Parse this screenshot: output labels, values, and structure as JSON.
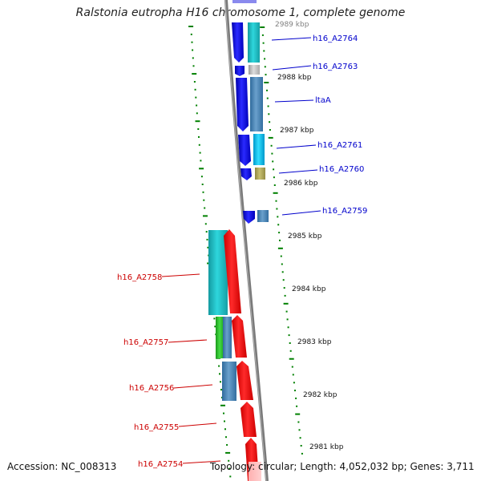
{
  "title": "Ralstonia eutropha H16 chromosome 1, complete genome",
  "footer": {
    "accession": "Accession: NC_008313",
    "topology": "Topology: circular; Length: 4,052,032 bp; Genes: 3,711"
  },
  "kbp_labels": [
    "2989 kbp",
    "2988 kbp",
    "2987 kbp",
    "2986 kbp",
    "2985 kbp",
    "2984 kbp",
    "2983 kbp",
    "2982 kbp",
    "2981 kbp"
  ],
  "forward_genes": [
    "h16_A2764",
    "h16_A2763",
    "ltaA",
    "h16_A2761",
    "h16_A2760",
    "h16_A2759"
  ],
  "reverse_genes": [
    "h16_A2758",
    "h16_A2757",
    "h16_A2756",
    "h16_A2755",
    "h16_A2754"
  ],
  "colors": {
    "axis": "#808080",
    "tick": "#008000",
    "forward_label": "#0000cc",
    "reverse_label": "#cc0000",
    "gene_blue": "#0000ee",
    "gene_red": "#ff0000",
    "cyan": "#20c8d0",
    "steel": "#4a86b8",
    "grey": "#bbbbbb",
    "olive": "#b8b060",
    "green": "#30c030",
    "light_cyan": "#00ccff"
  }
}
